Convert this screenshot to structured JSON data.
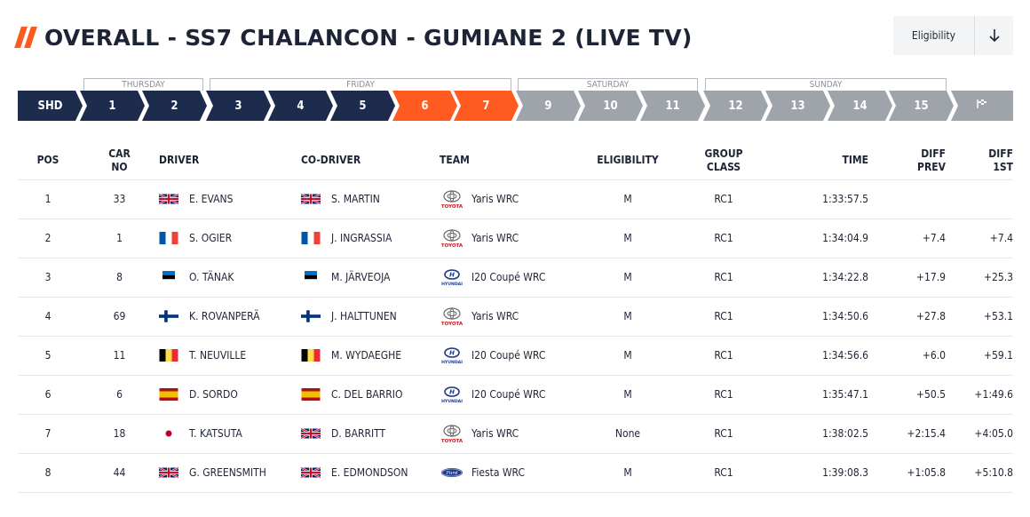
{
  "header": {
    "title": "OVERALL - SS7 CHALANCON - GUMIANE 2 (LIVE TV)",
    "eligibility_button": "Eligibility"
  },
  "days": [
    "THURSDAY",
    "FRIDAY",
    "SATURDAY",
    "SUNDAY"
  ],
  "stages": [
    {
      "label": "SHD",
      "state": "done"
    },
    {
      "label": "1",
      "state": "done"
    },
    {
      "label": "2",
      "state": "done"
    },
    {
      "label": "3",
      "state": "done"
    },
    {
      "label": "4",
      "state": "done"
    },
    {
      "label": "5",
      "state": "done"
    },
    {
      "label": "6",
      "state": "active"
    },
    {
      "label": "7",
      "state": "active"
    },
    {
      "label": "9",
      "state": "upcoming"
    },
    {
      "label": "10",
      "state": "upcoming"
    },
    {
      "label": "11",
      "state": "upcoming"
    },
    {
      "label": "12",
      "state": "upcoming"
    },
    {
      "label": "13",
      "state": "upcoming"
    },
    {
      "label": "14",
      "state": "upcoming"
    },
    {
      "label": "15",
      "state": "upcoming"
    },
    {
      "label": "",
      "state": "upcoming",
      "icon": "finish-flag-icon"
    }
  ],
  "colors": {
    "navy": "#1d2b4c",
    "orange": "#ff5a1f",
    "grey": "#9fa3aa"
  },
  "table": {
    "headers": {
      "pos": "POS",
      "car_no_1": "CAR",
      "car_no_2": "NO",
      "driver": "DRIVER",
      "codriver": "CO-DRIVER",
      "team": "TEAM",
      "eligibility": "ELIGIBILITY",
      "group_1": "GROUP",
      "group_2": "CLASS",
      "time": "TIME",
      "diff_prev_1": "DIFF",
      "diff_prev_2": "PREV",
      "diff_1st_1": "DIFF",
      "diff_1st_2": "1ST"
    },
    "rows": [
      {
        "pos": "1",
        "car": "33",
        "driver": "E. EVANS",
        "driver_flag": "gb",
        "codriver": "S. MARTIN",
        "codriver_flag": "gb",
        "brand": "toyota",
        "team": "Yaris WRC",
        "eligibility": "M",
        "class": "RC1",
        "time": "1:33:57.5",
        "diff_prev": "",
        "diff_1st": ""
      },
      {
        "pos": "2",
        "car": "1",
        "driver": "S. OGIER",
        "driver_flag": "fr",
        "codriver": "J. INGRASSIA",
        "codriver_flag": "fr",
        "brand": "toyota",
        "team": "Yaris WRC",
        "eligibility": "M",
        "class": "RC1",
        "time": "1:34:04.9",
        "diff_prev": "+7.4",
        "diff_1st": "+7.4"
      },
      {
        "pos": "3",
        "car": "8",
        "driver": "O. TÄNAK",
        "driver_flag": "ee",
        "codriver": "M. JÄRVEOJA",
        "codriver_flag": "ee",
        "brand": "hyundai",
        "team": "I20 Coupé WRC",
        "eligibility": "M",
        "class": "RC1",
        "time": "1:34:22.8",
        "diff_prev": "+17.9",
        "diff_1st": "+25.3"
      },
      {
        "pos": "4",
        "car": "69",
        "driver": "K. ROVANPERÄ",
        "driver_flag": "fi",
        "codriver": "J. HALTTUNEN",
        "codriver_flag": "fi",
        "brand": "toyota",
        "team": "Yaris WRC",
        "eligibility": "M",
        "class": "RC1",
        "time": "1:34:50.6",
        "diff_prev": "+27.8",
        "diff_1st": "+53.1"
      },
      {
        "pos": "5",
        "car": "11",
        "driver": "T. NEUVILLE",
        "driver_flag": "be",
        "codriver": "M. WYDAEGHE",
        "codriver_flag": "be",
        "brand": "hyundai",
        "team": "I20 Coupé WRC",
        "eligibility": "M",
        "class": "RC1",
        "time": "1:34:56.6",
        "diff_prev": "+6.0",
        "diff_1st": "+59.1"
      },
      {
        "pos": "6",
        "car": "6",
        "driver": "D. SORDO",
        "driver_flag": "es",
        "codriver": "C. DEL BARRIO",
        "codriver_flag": "es",
        "brand": "hyundai",
        "team": "I20 Coupé WRC",
        "eligibility": "M",
        "class": "RC1",
        "time": "1:35:47.1",
        "diff_prev": "+50.5",
        "diff_1st": "+1:49.6"
      },
      {
        "pos": "7",
        "car": "18",
        "driver": "T. KATSUTA",
        "driver_flag": "jp",
        "codriver": "D. BARRITT",
        "codriver_flag": "gb",
        "brand": "toyota",
        "team": "Yaris WRC",
        "eligibility": "None",
        "class": "RC1",
        "time": "1:38:02.5",
        "diff_prev": "+2:15.4",
        "diff_1st": "+4:05.0"
      },
      {
        "pos": "8",
        "car": "44",
        "driver": "G. GREENSMITH",
        "driver_flag": "gb",
        "codriver": "E. EDMONDSON",
        "codriver_flag": "gb",
        "brand": "ford",
        "team": "Fiesta WRC",
        "eligibility": "M",
        "class": "RC1",
        "time": "1:39:08.3",
        "diff_prev": "+1:05.8",
        "diff_1st": "+5:10.8"
      }
    ]
  }
}
